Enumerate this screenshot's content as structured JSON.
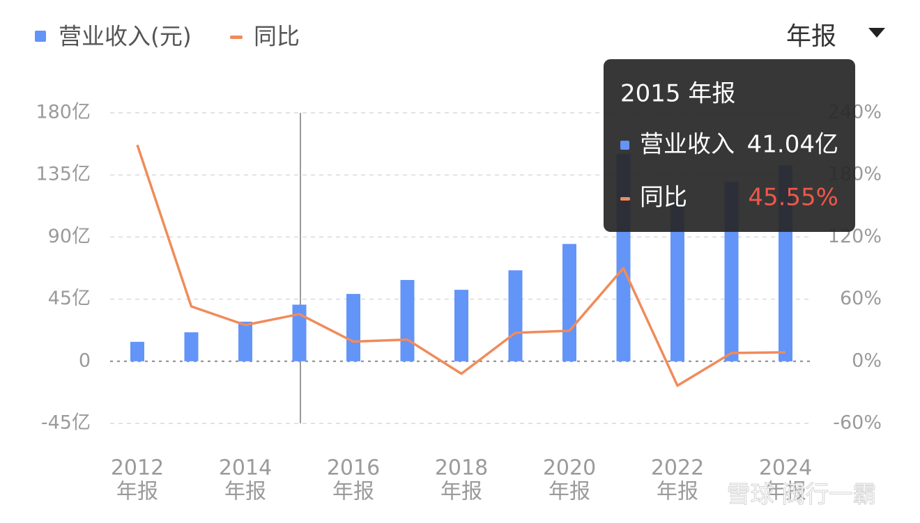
{
  "chart_data": {
    "type": "bar-line",
    "categories": [
      [
        "2012",
        "年报"
      ],
      null,
      [
        "2014",
        "年报"
      ],
      null,
      [
        "2016",
        "年报"
      ],
      null,
      [
        "2018",
        "年报"
      ],
      null,
      [
        "2020",
        "年报"
      ],
      null,
      [
        "2022",
        "年报"
      ],
      null,
      [
        "2024",
        "年报"
      ]
    ],
    "series": [
      {
        "name": "营业收入(元)",
        "type": "bar",
        "color": "#6394f8",
        "values": [
          14.1,
          21,
          28.7,
          41.04,
          48.8,
          58.9,
          51.8,
          65.9,
          85,
          150,
          116,
          130,
          142
        ]
      },
      {
        "name": "同比",
        "type": "line",
        "axis": "y2",
        "color": "#f08b5a",
        "values": [
          209,
          53,
          35,
          45.55,
          19,
          21,
          -12,
          27.5,
          29.5,
          90,
          -23.5,
          8,
          8.7
        ]
      }
    ],
    "ylim": [
      -45,
      180
    ],
    "yticks": [
      {
        "value": -45,
        "label": "-45亿"
      },
      0,
      {
        "value": 45,
        "label": "45亿"
      },
      {
        "value": 90,
        "label": "90亿"
      },
      {
        "value": 135,
        "label": "135亿"
      },
      {
        "value": 180,
        "label": "180亿"
      }
    ],
    "y2lim": [
      -60,
      240
    ],
    "y2ticks": [
      {
        "value": -60,
        "label": "-60%"
      },
      {
        "value": 0,
        "label": "0%"
      },
      {
        "value": 60,
        "label": "60%"
      },
      {
        "value": 120,
        "label": "120%"
      },
      {
        "value": 180,
        "label": "180%"
      },
      {
        "value": 240,
        "label": "240%"
      }
    ],
    "grid": true,
    "tooltip": {
      "title": "2015 年报",
      "items": [
        {
          "name": "营业收入",
          "label": "41.04亿"
        },
        {
          "name": "同比",
          "label": "45.55%"
        }
      ]
    }
  },
  "period_selector": "年报",
  "watermark": "雪球 阀行一霸"
}
